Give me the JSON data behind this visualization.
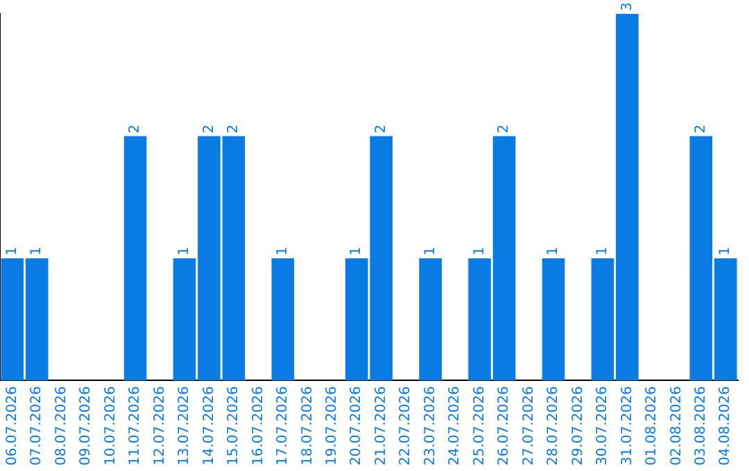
{
  "chart_data": {
    "type": "bar",
    "categories": [
      "06.07.2026",
      "07.07.2026",
      "08.07.2026",
      "09.07.2026",
      "10.07.2026",
      "11.07.2026",
      "12.07.2026",
      "13.07.2026",
      "14.07.2026",
      "15.07.2026",
      "16.07.2026",
      "17.07.2026",
      "18.07.2026",
      "19.07.2026",
      "20.07.2026",
      "21.07.2026",
      "22.07.2026",
      "23.07.2026",
      "24.07.2026",
      "25.07.2026",
      "26.07.2026",
      "27.07.2026",
      "28.07.2026",
      "29.07.2026",
      "30.07.2026",
      "31.07.2026",
      "01.08.2026",
      "02.08.2026",
      "03.08.2026",
      "04.08.2026"
    ],
    "values": [
      1,
      1,
      0,
      0,
      0,
      2,
      0,
      1,
      2,
      2,
      0,
      1,
      0,
      0,
      1,
      2,
      0,
      1,
      0,
      1,
      2,
      0,
      1,
      0,
      1,
      3,
      0,
      0,
      2,
      1
    ],
    "value_labels": [
      "1",
      "1",
      null,
      null,
      null,
      "2",
      null,
      "1",
      "2",
      "2",
      null,
      "1",
      null,
      null,
      "1",
      "2",
      null,
      "1",
      null,
      "1",
      "2",
      null,
      "1",
      null,
      "1",
      "3",
      null,
      null,
      "2",
      "1"
    ],
    "color": "#0a7be3",
    "grid": false,
    "legend": false
  }
}
